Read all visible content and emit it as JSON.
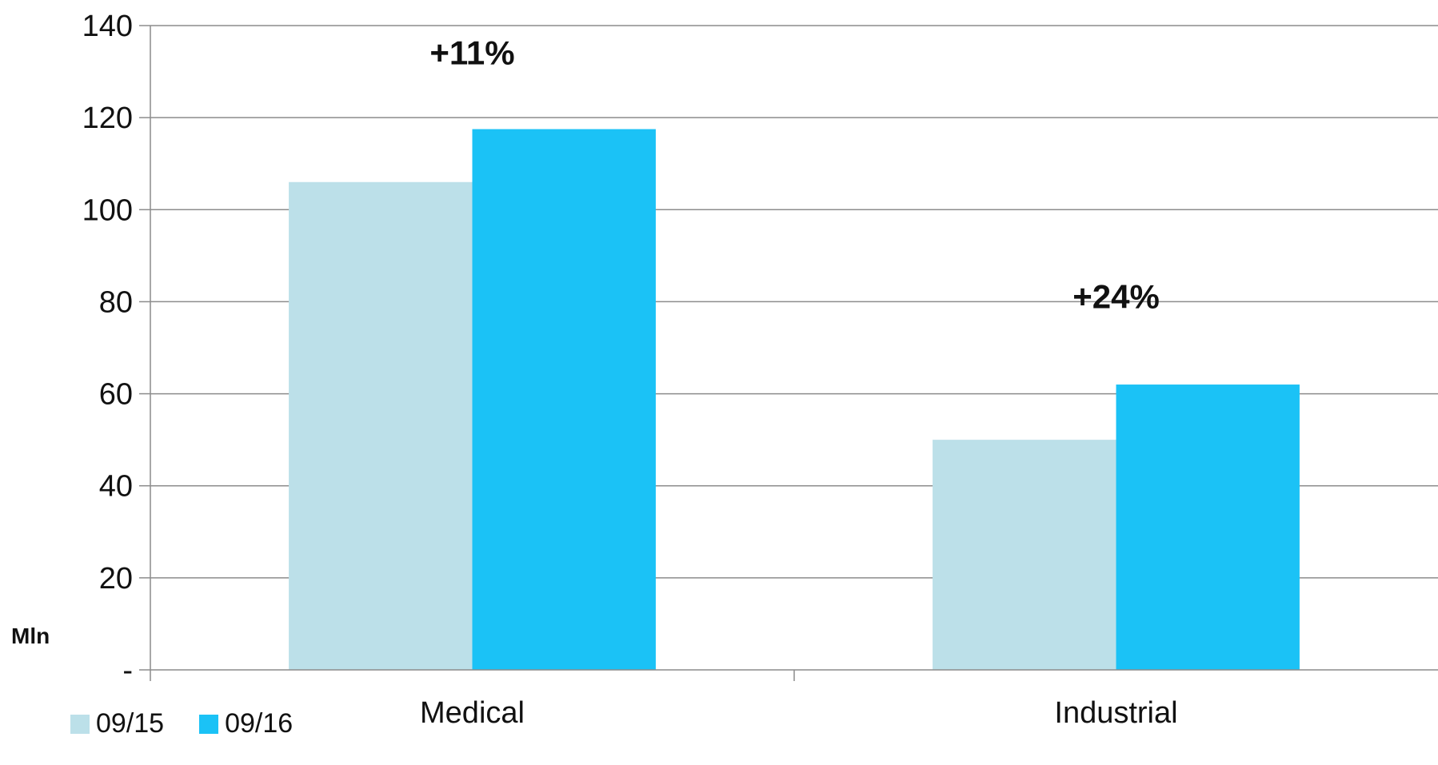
{
  "chart_data": {
    "type": "bar",
    "categories": [
      "Medical",
      "Industrial"
    ],
    "series": [
      {
        "name": "09/15",
        "values": [
          106,
          50
        ],
        "color": "#bce0e9"
      },
      {
        "name": "09/16",
        "values": [
          117.5,
          62
        ],
        "color": "#1bc2f6"
      }
    ],
    "title": "",
    "xlabel": "",
    "ylabel": "Mln",
    "ylim": [
      0,
      140
    ],
    "yticks": [
      0,
      20,
      40,
      60,
      80,
      100,
      120,
      140
    ],
    "ytick_labels": [
      "-",
      "20",
      "40",
      "60",
      "80",
      "100",
      "120",
      "140"
    ],
    "annotations": [
      {
        "category": "Medical",
        "text": "+11%",
        "y": 134
      },
      {
        "category": "Industrial",
        "text": "+24%",
        "y": 81
      }
    ],
    "grid": true,
    "legend_position": "bottom-left"
  }
}
